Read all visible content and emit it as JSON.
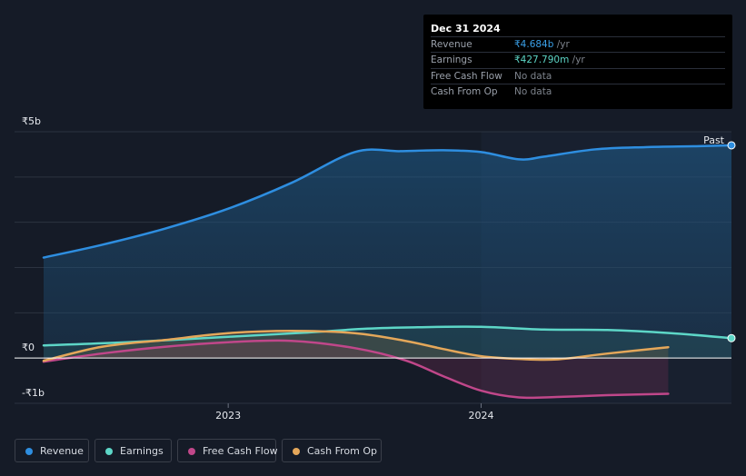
{
  "chart_data": {
    "type": "area",
    "title": "",
    "y_tick_labels": [
      "₹5b",
      "₹0",
      "-₹1b"
    ],
    "x_tick_labels": [
      "2023",
      "2024"
    ],
    "ylim": [
      -1,
      5
    ],
    "xlim": [
      2022.27,
      2024.99
    ],
    "past_label": "Past",
    "forecast_start": 2024.0,
    "series": [
      {
        "name": "Revenue",
        "color": "#2e8ee0",
        "area": true,
        "x": [
          2022.27,
          2022.5,
          2022.75,
          2023.0,
          2023.25,
          2023.5,
          2023.68,
          2023.85,
          2024.0,
          2024.15,
          2024.25,
          2024.45,
          2024.65,
          2024.85,
          2024.99
        ],
        "y": [
          2.22,
          2.5,
          2.86,
          3.3,
          3.87,
          4.55,
          4.57,
          4.59,
          4.55,
          4.39,
          4.45,
          4.61,
          4.66,
          4.68,
          4.7
        ]
      },
      {
        "name": "Earnings",
        "color": "#5dd6c7",
        "area": true,
        "x": [
          2022.27,
          2022.6,
          2023.0,
          2023.3,
          2023.55,
          2023.75,
          2024.0,
          2024.25,
          2024.5,
          2024.75,
          2024.99
        ],
        "y": [
          0.28,
          0.35,
          0.47,
          0.56,
          0.65,
          0.68,
          0.69,
          0.63,
          0.62,
          0.55,
          0.44
        ]
      },
      {
        "name": "Free Cash Flow",
        "color": "#c0478a",
        "area": true,
        "x": [
          2022.27,
          2022.5,
          2022.75,
          2023.0,
          2023.25,
          2023.5,
          2023.7,
          2023.85,
          2024.0,
          2024.15,
          2024.3,
          2024.5,
          2024.74
        ],
        "y": [
          -0.08,
          0.1,
          0.25,
          0.35,
          0.38,
          0.22,
          -0.05,
          -0.4,
          -0.72,
          -0.87,
          -0.86,
          -0.82,
          -0.79
        ]
      },
      {
        "name": "Cash From Op",
        "color": "#e4a75a",
        "area": true,
        "x": [
          2022.27,
          2022.5,
          2022.75,
          2023.0,
          2023.25,
          2023.5,
          2023.7,
          2023.85,
          2024.0,
          2024.15,
          2024.3,
          2024.5,
          2024.74
        ],
        "y": [
          -0.06,
          0.25,
          0.4,
          0.55,
          0.6,
          0.55,
          0.38,
          0.2,
          0.04,
          -0.02,
          -0.03,
          0.1,
          0.24
        ]
      }
    ]
  },
  "tooltip": {
    "date": "Dec 31 2024",
    "rows": [
      {
        "label": "Revenue",
        "value": "₹4.684b",
        "suffix": " /yr"
      },
      {
        "label": "Earnings",
        "value": "₹427.790m",
        "suffix": " /yr"
      },
      {
        "label": "Free Cash Flow",
        "value": "No data"
      },
      {
        "label": "Cash From Op",
        "value": "No data"
      }
    ]
  },
  "legend": [
    {
      "label": "Revenue",
      "color": "#2e8ee0"
    },
    {
      "label": "Earnings",
      "color": "#5dd6c7"
    },
    {
      "label": "Free Cash Flow",
      "color": "#c0478a"
    },
    {
      "label": "Cash From Op",
      "color": "#e4a75a"
    }
  ]
}
